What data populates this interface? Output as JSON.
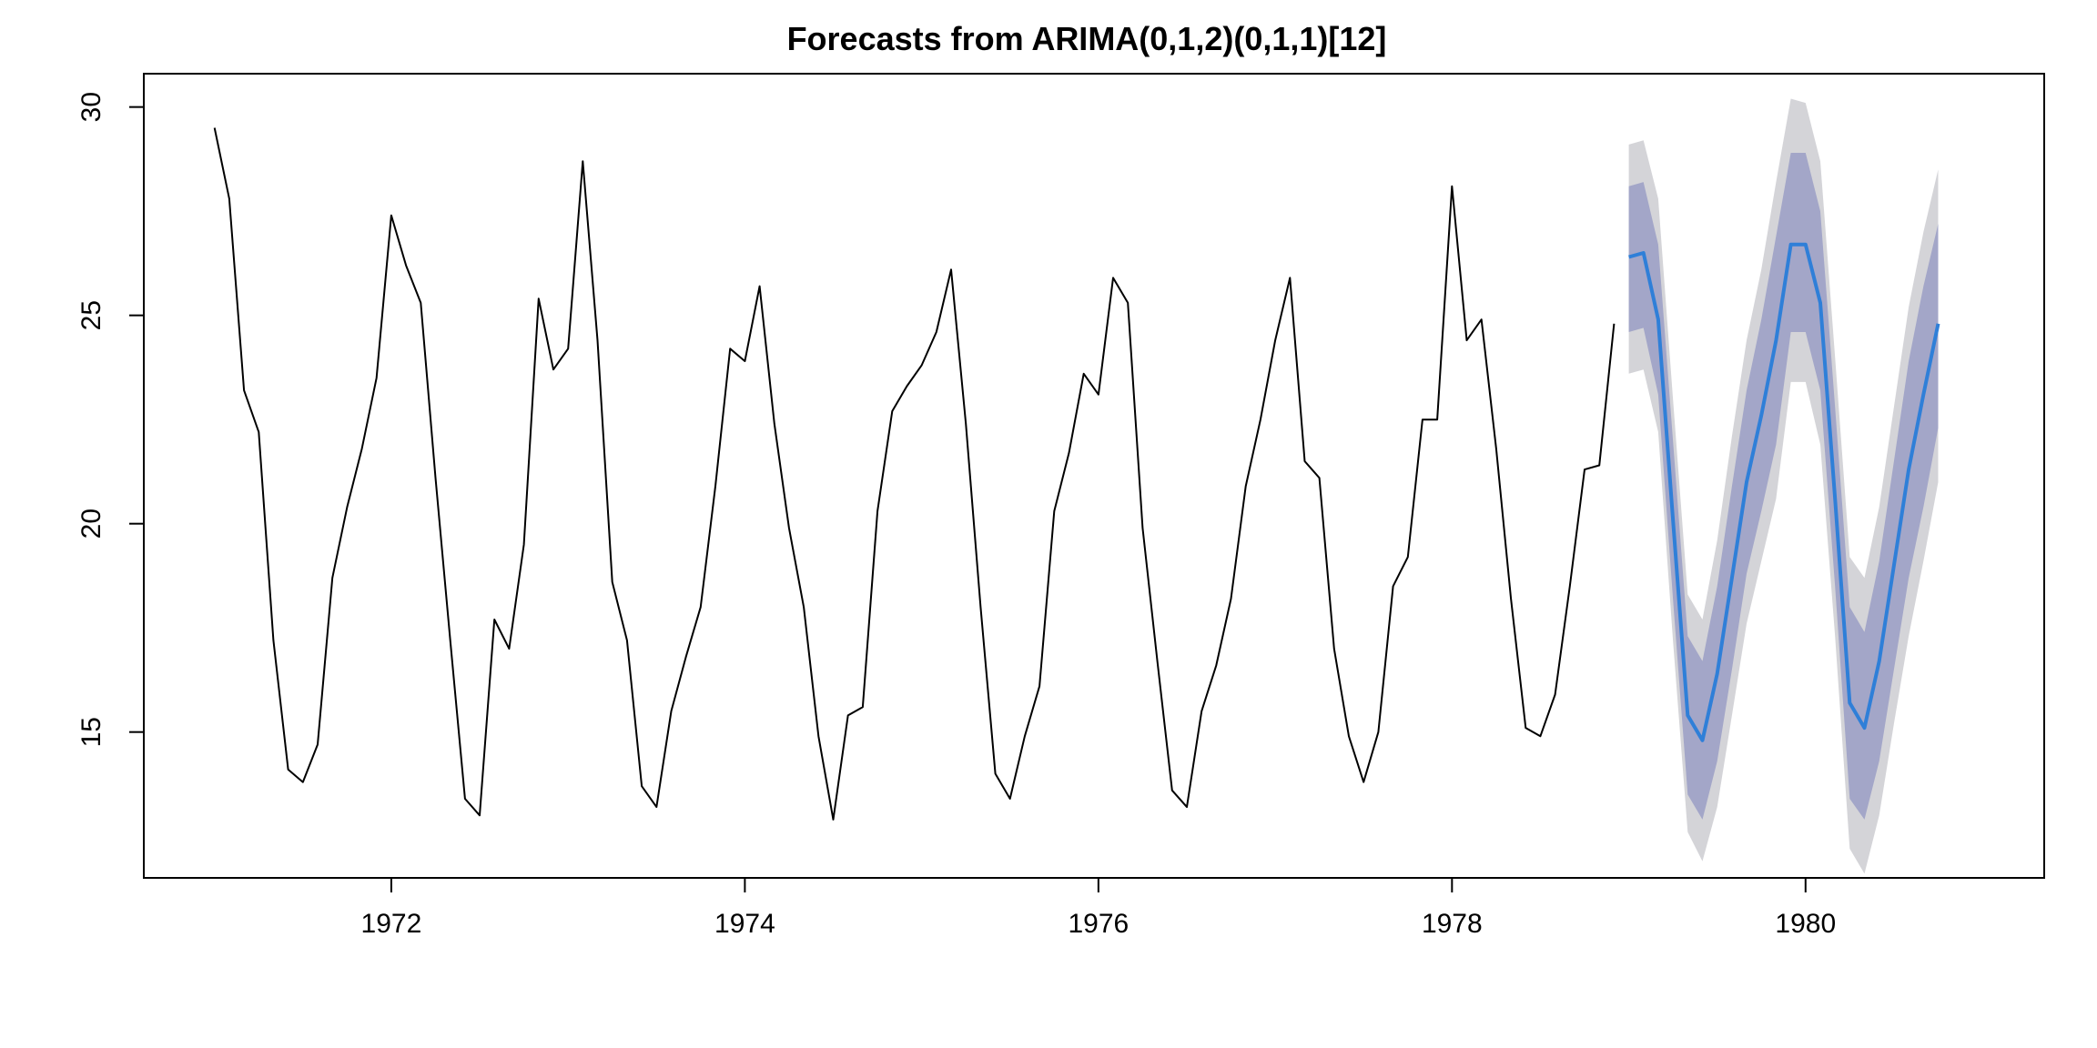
{
  "chart_data": {
    "type": "line",
    "title": "Forecasts from ARIMA(0,1,2)(0,1,1)[12]",
    "xlabel": "",
    "ylabel": "",
    "xlim": [
      1970.6,
      1981.35
    ],
    "ylim": [
      11.5,
      30.8
    ],
    "x_ticks": [
      1972,
      1974,
      1976,
      1978,
      1980
    ],
    "x_tick_labels": [
      "1972",
      "1974",
      "1976",
      "1978",
      "1980"
    ],
    "y_ticks": [
      15,
      20,
      25,
      30
    ],
    "y_tick_labels": [
      "15",
      "20",
      "25",
      "30"
    ],
    "grid": false,
    "legend": "none",
    "colors": {
      "history": "#000000",
      "forecast": "#2f7fd8",
      "band80": "#a3a6c8",
      "band95": "#d4d4d8",
      "axis": "#000000"
    },
    "history": {
      "start": "1971-01",
      "frequency": 12,
      "values": [
        29.5,
        27.8,
        23.2,
        22.2,
        17.2,
        14.1,
        13.8,
        14.7,
        18.7,
        20.4,
        21.8,
        23.5,
        27.4,
        26.2,
        25.3,
        21.1,
        17.2,
        13.4,
        13.0,
        17.7,
        17.0,
        19.5,
        25.4,
        23.7,
        24.2,
        28.7,
        24.4,
        18.6,
        17.2,
        13.7,
        13.2,
        15.5,
        16.8,
        18.0,
        20.9,
        24.2,
        23.9,
        25.7,
        22.4,
        19.9,
        18.0,
        14.9,
        12.9,
        15.4,
        15.6,
        20.3,
        22.7,
        23.3,
        23.8,
        24.6,
        26.1,
        22.4,
        18.0,
        14.0,
        13.4,
        14.9,
        16.1,
        20.3,
        21.7,
        23.6,
        23.1,
        25.9,
        25.3,
        19.9,
        16.7,
        13.6,
        13.2,
        15.5,
        16.6,
        18.2,
        20.9,
        22.5,
        24.4,
        25.9,
        21.5,
        21.1,
        17.0,
        14.9,
        13.8,
        15.0,
        18.5,
        19.2,
        22.5,
        22.5,
        28.1,
        24.4,
        24.9,
        21.8,
        18.2,
        15.1,
        14.9,
        15.9,
        18.5,
        21.3,
        21.4,
        24.8
      ]
    },
    "forecast": {
      "start": "1979-01",
      "frequency": 12,
      "mean": [
        26.4,
        26.5,
        24.9,
        20.1,
        15.4,
        14.8,
        16.4,
        18.7,
        21.0,
        22.6,
        24.4,
        26.7,
        26.7,
        25.3,
        20.6,
        15.7,
        15.1,
        16.7,
        19.0,
        21.3,
        23.1,
        24.8
      ],
      "lo80": [
        24.6,
        24.7,
        23.1,
        18.2,
        13.5,
        12.9,
        14.3,
        16.5,
        18.8,
        20.3,
        21.9,
        24.6,
        24.6,
        23.2,
        18.5,
        13.4,
        12.9,
        14.3,
        16.5,
        18.7,
        20.4,
        22.3
      ],
      "hi80": [
        28.1,
        28.2,
        26.7,
        22.0,
        17.3,
        16.7,
        18.5,
        20.9,
        23.2,
        24.9,
        26.9,
        28.9,
        28.9,
        27.5,
        22.8,
        18.0,
        17.4,
        19.1,
        21.5,
        23.9,
        25.7,
        27.2
      ],
      "lo95": [
        23.6,
        23.7,
        22.2,
        17.2,
        12.6,
        11.9,
        13.2,
        15.4,
        17.6,
        19.1,
        20.6,
        23.4,
        23.4,
        21.9,
        17.3,
        12.2,
        11.6,
        13.0,
        15.2,
        17.3,
        19.1,
        21.0
      ],
      "hi95": [
        29.1,
        29.2,
        27.8,
        23.0,
        18.3,
        17.7,
        19.6,
        22.1,
        24.4,
        26.1,
        28.2,
        30.2,
        30.1,
        28.7,
        24.0,
        19.2,
        18.7,
        20.4,
        22.8,
        25.2,
        27.0,
        28.5
      ]
    }
  }
}
